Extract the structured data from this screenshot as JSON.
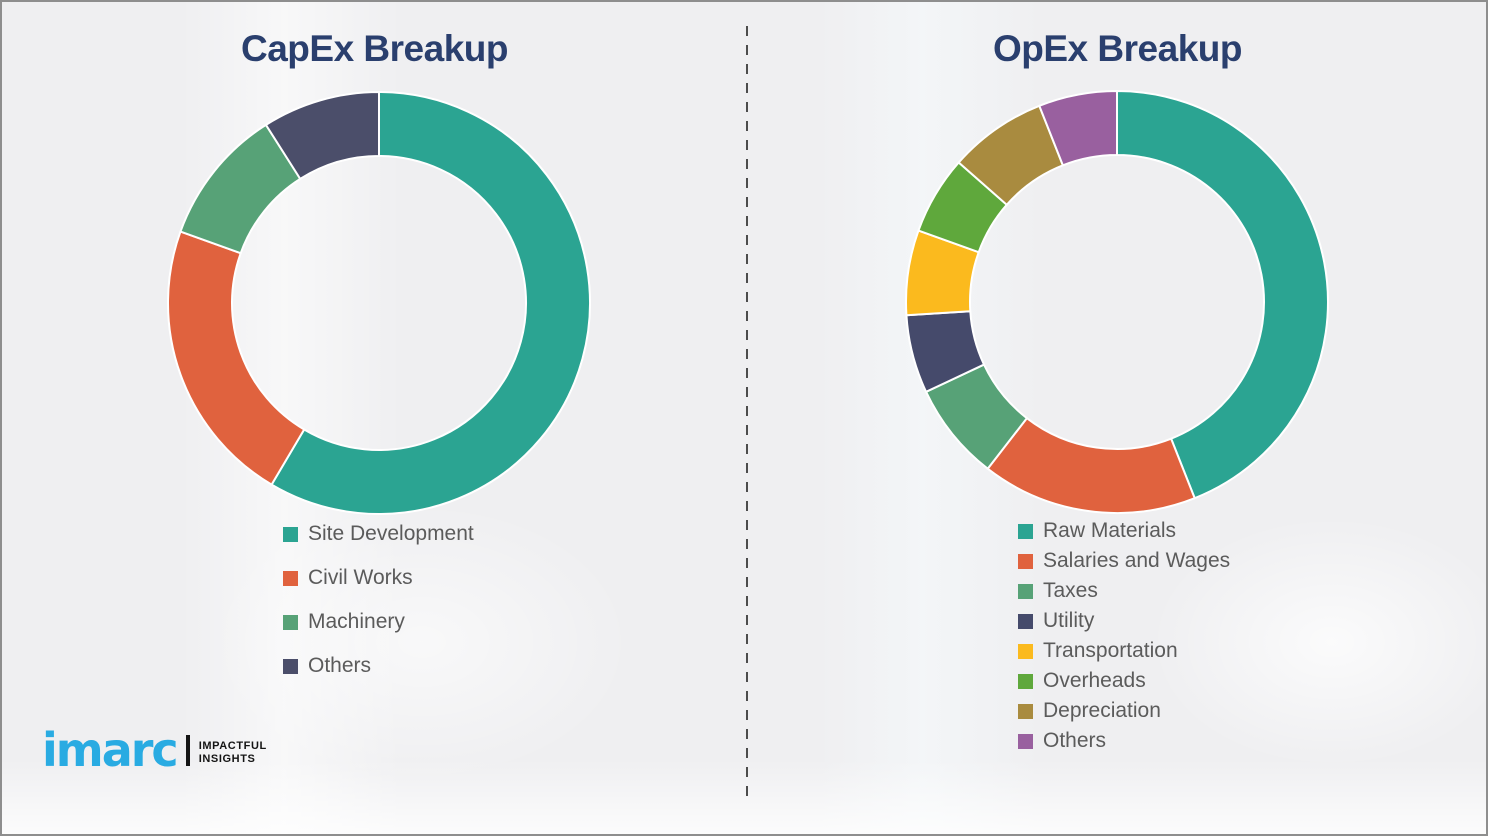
{
  "page": {
    "background_color": "#efeff1",
    "divider_color": "#4c4c4c",
    "title_color": "#2a3f6e",
    "legend_text_color": "#5b5b5b"
  },
  "branding": {
    "logo_text": "imarc",
    "tagline_line1": "IMPACTFUL",
    "tagline_line2": "INSIGHTS",
    "logo_color": "#29abe2"
  },
  "chart_data": [
    {
      "type": "pie",
      "donut": true,
      "title": "CapEx Breakup",
      "start_angle_deg": 0,
      "direction": "clockwise",
      "legend_position": "below-left",
      "series": [
        {
          "label": "Site Development",
          "value": 58.5,
          "color": "#2ba492"
        },
        {
          "label": "Civil Works",
          "value": 22,
          "color": "#e0623e"
        },
        {
          "label": "Machinery",
          "value": 10.5,
          "color": "#57a277"
        },
        {
          "label": "Others",
          "value": 9,
          "color": "#4b4e6a"
        }
      ]
    },
    {
      "type": "pie",
      "donut": true,
      "title": "OpEx Breakup",
      "start_angle_deg": 0,
      "direction": "clockwise",
      "legend_position": "below-left",
      "series": [
        {
          "label": "Raw Materials",
          "value": 44,
          "color": "#2ba492"
        },
        {
          "label": "Salaries and Wages",
          "value": 16.5,
          "color": "#e0623e"
        },
        {
          "label": "Taxes",
          "value": 7.5,
          "color": "#57a277"
        },
        {
          "label": "Utility",
          "value": 6,
          "color": "#454a6b"
        },
        {
          "label": "Transportation",
          "value": 6.5,
          "color": "#fbba1e"
        },
        {
          "label": "Overheads",
          "value": 6,
          "color": "#5fa83c"
        },
        {
          "label": "Depreciation",
          "value": 7.5,
          "color": "#a98b3f"
        },
        {
          "label": "Others",
          "value": 6,
          "color": "#99609f"
        }
      ]
    }
  ]
}
